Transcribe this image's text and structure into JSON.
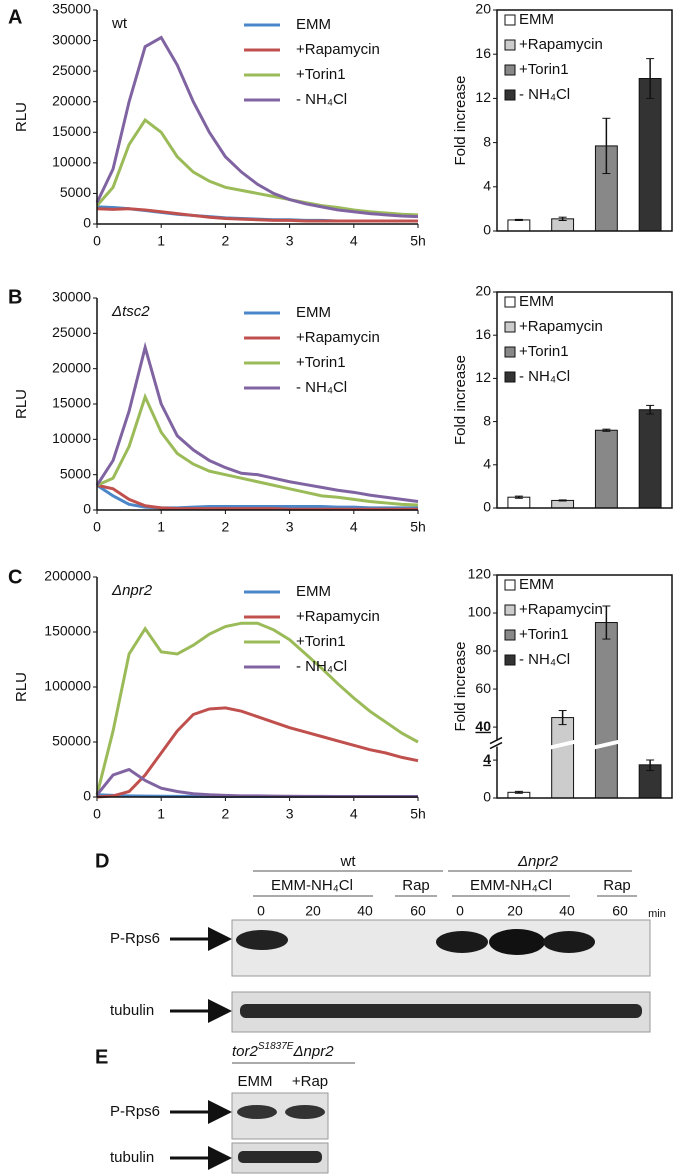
{
  "panel_labels": [
    "A",
    "B",
    "C",
    "D",
    "E"
  ],
  "chart_data": [
    {
      "type": "line",
      "annotation": "wt",
      "ylabel": "RLU",
      "x": [
        0,
        0.25,
        0.5,
        0.75,
        1,
        1.25,
        1.5,
        1.75,
        2,
        2.25,
        2.5,
        2.75,
        3,
        3.25,
        3.5,
        3.75,
        4,
        4.25,
        4.5,
        4.75,
        5
      ],
      "xlim": [
        0,
        5
      ],
      "xticks": [
        0,
        1,
        2,
        3,
        4,
        {
          "value": 5,
          "label": "5h"
        }
      ],
      "ylim": [
        0,
        35000
      ],
      "yticks": [
        0,
        5000,
        10000,
        15000,
        20000,
        25000,
        30000,
        35000
      ],
      "series": [
        {
          "name": "EMM",
          "color": "#4a86c8",
          "values": [
            2800,
            2700,
            2500,
            2200,
            1900,
            1600,
            1400,
            1200,
            1000,
            900,
            800,
            700,
            700,
            600,
            600,
            500,
            500,
            500,
            500,
            500,
            500
          ]
        },
        {
          "name": "+Rapamycin",
          "color": "#c0504d",
          "values": [
            2500,
            2400,
            2500,
            2300,
            2000,
            1700,
            1400,
            1100,
            900,
            800,
            700,
            600,
            600,
            500,
            500,
            500,
            500,
            500,
            500,
            500,
            500
          ]
        },
        {
          "name": "+Torin1",
          "color": "#9bbb59",
          "values": [
            3000,
            6000,
            13000,
            17000,
            15000,
            11000,
            8500,
            7000,
            6000,
            5500,
            5000,
            4500,
            4000,
            3500,
            3000,
            2700,
            2300,
            2000,
            1800,
            1600,
            1500
          ]
        },
        {
          "name": "- NH₄Cl",
          "color": "#8064a2",
          "values": [
            3500,
            9000,
            20000,
            29000,
            30500,
            26000,
            20000,
            15000,
            11000,
            8500,
            6500,
            5000,
            4000,
            3300,
            2800,
            2300,
            2000,
            1700,
            1500,
            1300,
            1200
          ]
        }
      ]
    },
    {
      "type": "bar",
      "ylabel": "Fold increase",
      "ylim": [
        0,
        20
      ],
      "yticks": [
        0,
        4,
        8,
        12,
        16,
        20
      ],
      "series": [
        {
          "name": "EMM",
          "color": "#ffffff",
          "values": [
            1
          ],
          "errors": [
            0.05
          ]
        },
        {
          "name": "+Rapamycin",
          "color": "#cccccc",
          "values": [
            1.1
          ],
          "errors": [
            0.15
          ]
        },
        {
          "name": "+Torin1",
          "color": "#888888",
          "values": [
            7.7
          ],
          "errors": [
            2.5
          ]
        },
        {
          "name": "- NH₄Cl",
          "color": "#333333",
          "values": [
            13.8
          ],
          "errors": [
            1.8
          ]
        }
      ]
    },
    {
      "type": "line",
      "annotation": "Δtsc2",
      "ylabel": "RLU",
      "x": [
        0,
        0.25,
        0.5,
        0.75,
        1,
        1.25,
        1.5,
        1.75,
        2,
        2.25,
        2.5,
        2.75,
        3,
        3.25,
        3.5,
        3.75,
        4,
        4.25,
        4.5,
        4.75,
        5
      ],
      "xlim": [
        0,
        5
      ],
      "xticks": [
        0,
        1,
        2,
        3,
        4,
        {
          "value": 5,
          "label": "5h"
        }
      ],
      "ylim": [
        0,
        30000
      ],
      "yticks": [
        0,
        5000,
        10000,
        15000,
        20000,
        25000,
        30000
      ],
      "series": [
        {
          "name": "EMM",
          "color": "#4a86c8",
          "values": [
            3500,
            2000,
            800,
            400,
            300,
            300,
            400,
            500,
            500,
            500,
            500,
            500,
            500,
            500,
            500,
            400,
            400,
            300,
            300,
            300,
            300
          ]
        },
        {
          "name": "+Rapamycin",
          "color": "#c0504d",
          "values": [
            3500,
            3000,
            1500,
            600,
            300,
            200,
            200,
            200,
            200,
            200,
            200,
            200,
            100,
            100,
            100,
            100,
            100,
            100,
            100,
            100,
            100
          ]
        },
        {
          "name": "+Torin1",
          "color": "#9bbb59",
          "values": [
            3500,
            4500,
            9000,
            16000,
            11000,
            8000,
            6500,
            5500,
            5000,
            4500,
            4000,
            3500,
            3000,
            2500,
            2000,
            1800,
            1500,
            1200,
            1000,
            800,
            700
          ]
        },
        {
          "name": "- NH₄Cl",
          "color": "#8064a2",
          "values": [
            3500,
            7000,
            14000,
            23000,
            15000,
            10500,
            8500,
            7000,
            6000,
            5200,
            5000,
            4500,
            4000,
            3600,
            3200,
            2800,
            2500,
            2100,
            1800,
            1500,
            1200
          ]
        }
      ]
    },
    {
      "type": "bar",
      "ylabel": "Fold increase",
      "ylim": [
        0,
        20
      ],
      "yticks": [
        0,
        4,
        8,
        12,
        16,
        20
      ],
      "series": [
        {
          "name": "EMM",
          "color": "#ffffff",
          "values": [
            1
          ],
          "errors": [
            0.1
          ]
        },
        {
          "name": "+Rapamycin",
          "color": "#cccccc",
          "values": [
            0.7
          ],
          "errors": [
            0.05
          ]
        },
        {
          "name": "+Torin1",
          "color": "#888888",
          "values": [
            7.2
          ],
          "errors": [
            0.1
          ]
        },
        {
          "name": "- NH₄Cl",
          "color": "#333333",
          "values": [
            9.1
          ],
          "errors": [
            0.4
          ]
        }
      ]
    },
    {
      "type": "line",
      "annotation": "Δnpr2",
      "ylabel": "RLU",
      "x": [
        0,
        0.25,
        0.5,
        0.75,
        1,
        1.25,
        1.5,
        1.75,
        2,
        2.25,
        2.5,
        2.75,
        3,
        3.25,
        3.5,
        3.75,
        4,
        4.25,
        4.5,
        4.75,
        5
      ],
      "xlim": [
        0,
        5
      ],
      "xticks": [
        0,
        1,
        2,
        3,
        4,
        {
          "value": 5,
          "label": "5h"
        }
      ],
      "ylim": [
        0,
        200000
      ],
      "yticks": [
        0,
        50000,
        100000,
        150000,
        200000
      ],
      "series": [
        {
          "name": "EMM",
          "color": "#4a86c8",
          "values": [
            2000,
            1500,
            1000,
            800,
            700,
            600,
            600,
            500,
            500,
            500,
            500,
            500,
            500,
            500,
            500,
            500,
            500,
            500,
            500,
            500,
            500
          ]
        },
        {
          "name": "+Rapamycin",
          "color": "#c0504d",
          "values": [
            0,
            1000,
            5000,
            20000,
            40000,
            60000,
            75000,
            80000,
            81000,
            78000,
            73000,
            68000,
            63000,
            59000,
            55000,
            51000,
            47000,
            43000,
            40000,
            36000,
            33000
          ]
        },
        {
          "name": "+Torin1",
          "color": "#9bbb59",
          "values": [
            2000,
            60000,
            130000,
            153000,
            132000,
            130000,
            138000,
            148000,
            155000,
            158000,
            158000,
            152000,
            143000,
            130000,
            117000,
            103000,
            90000,
            78000,
            68000,
            58000,
            50000
          ]
        },
        {
          "name": "- NH₄Cl",
          "color": "#8064a2",
          "values": [
            2000,
            20000,
            25000,
            15000,
            8000,
            5000,
            3000,
            2000,
            1500,
            1000,
            1000,
            800,
            700,
            600,
            600,
            500,
            500,
            500,
            500,
            500,
            500
          ]
        }
      ]
    },
    {
      "type": "bar",
      "ylabel": "Fold increase",
      "ylim": [
        0,
        120
      ],
      "ybreak": [
        4,
        40
      ],
      "yticks": [
        0,
        4,
        40,
        60,
        80,
        100,
        120
      ],
      "series": [
        {
          "name": "EMM",
          "color": "#ffffff",
          "values": [
            0.6
          ],
          "errors": [
            0.1
          ]
        },
        {
          "name": "+Rapamycin",
          "color": "#cccccc",
          "values": [
            45
          ],
          "errors": [
            3.7
          ]
        },
        {
          "name": "+Torin1",
          "color": "#888888",
          "values": [
            95
          ],
          "errors": [
            8.7
          ]
        },
        {
          "name": "- NH₄Cl",
          "color": "#333333",
          "values": [
            3.5
          ],
          "errors": [
            0.6
          ]
        }
      ]
    }
  ],
  "blot_d": {
    "strains": [
      "wt",
      "Δnpr2"
    ],
    "treatments": [
      "EMM-NH₄Cl",
      "Rap",
      "EMM-NH₄Cl",
      "Rap"
    ],
    "times": [
      "0",
      "20",
      "40",
      "60",
      "0",
      "20",
      "40",
      "60"
    ],
    "time_unit": "min",
    "rows": [
      "P-Rps6",
      "tubulin"
    ]
  },
  "blot_e": {
    "strain_gene": "tor2",
    "strain_allele": "S1837E",
    "strain_deletion": "Δnpr2",
    "lanes": [
      "EMM",
      "+Rap"
    ],
    "rows": [
      "P-Rps6",
      "tubulin"
    ]
  }
}
